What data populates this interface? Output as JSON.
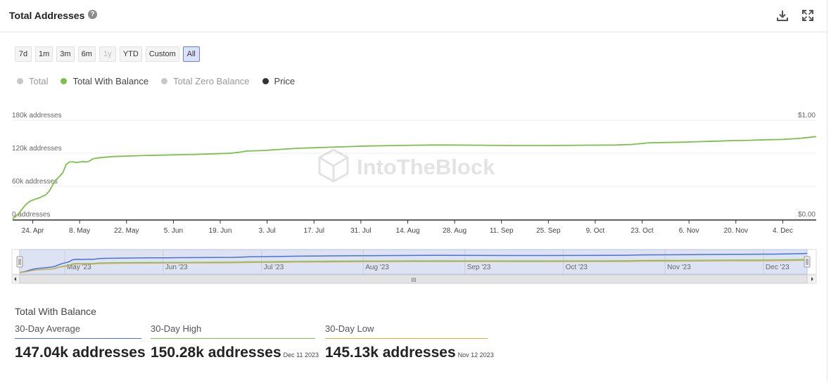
{
  "header": {
    "title": "Total Addresses",
    "help_glyph": "?"
  },
  "timeframes": [
    {
      "label": "7d",
      "state": "normal"
    },
    {
      "label": "1m",
      "state": "normal"
    },
    {
      "label": "3m",
      "state": "normal"
    },
    {
      "label": "6m",
      "state": "normal"
    },
    {
      "label": "1y",
      "state": "disabled"
    },
    {
      "label": "YTD",
      "state": "normal"
    },
    {
      "label": "Custom",
      "state": "normal"
    },
    {
      "label": "All",
      "state": "active"
    }
  ],
  "legend": [
    {
      "label": "Total",
      "color": "#c8c8c8",
      "text_color": "#999999"
    },
    {
      "label": "Total With Balance",
      "color": "#7cc04b",
      "text_color": "#444444"
    },
    {
      "label": "Total Zero Balance",
      "color": "#c8c8c8",
      "text_color": "#999999"
    },
    {
      "label": "Price",
      "color": "#333333",
      "text_color": "#444444"
    }
  ],
  "watermark": "IntoTheBlock",
  "chart_data": {
    "type": "line",
    "title": "Total Addresses",
    "xlabel": "",
    "ylabel": "addresses",
    "ylim": [
      0,
      180000
    ],
    "y2lim": [
      0,
      1
    ],
    "y_ticks": [
      "0 addresses",
      "60k addresses",
      "120k addresses",
      "180k addresses"
    ],
    "y_tick_values": [
      0,
      60000,
      120000,
      180000
    ],
    "y2_ticks": [
      "$0.00",
      "$1.00"
    ],
    "y2_tick_values": [
      0,
      1
    ],
    "x_day_range": [
      0,
      240
    ],
    "x_ticks": [
      {
        "label": "24. Apr",
        "day": 6
      },
      {
        "label": "8. May",
        "day": 20
      },
      {
        "label": "22. May",
        "day": 34
      },
      {
        "label": "5. Jun",
        "day": 48
      },
      {
        "label": "19. Jun",
        "day": 62
      },
      {
        "label": "3. Jul",
        "day": 76
      },
      {
        "label": "17. Jul",
        "day": 90
      },
      {
        "label": "31. Jul",
        "day": 104
      },
      {
        "label": "14. Aug",
        "day": 118
      },
      {
        "label": "28. Aug",
        "day": 132
      },
      {
        "label": "11. Sep",
        "day": 146
      },
      {
        "label": "25. Sep",
        "day": 160
      },
      {
        "label": "9. Oct",
        "day": 174
      },
      {
        "label": "23. Oct",
        "day": 188
      },
      {
        "label": "6. Nov",
        "day": 202
      },
      {
        "label": "20. Nov",
        "day": 216
      },
      {
        "label": "4. Dec",
        "day": 230
      }
    ],
    "series": [
      {
        "name": "Total With Balance",
        "color": "#7cc04b",
        "points": [
          [
            0,
            1000
          ],
          [
            1,
            6000
          ],
          [
            2,
            12000
          ],
          [
            3,
            20000
          ],
          [
            4,
            27000
          ],
          [
            5,
            32000
          ],
          [
            6,
            35000
          ],
          [
            7,
            37000
          ],
          [
            8,
            39000
          ],
          [
            9,
            42000
          ],
          [
            10,
            45000
          ],
          [
            11,
            52000
          ],
          [
            12,
            63000
          ],
          [
            13,
            72000
          ],
          [
            14,
            78000
          ],
          [
            15,
            85000
          ],
          [
            16,
            100000
          ],
          [
            17,
            104000
          ],
          [
            18,
            104500
          ],
          [
            19,
            103000
          ],
          [
            20,
            104000
          ],
          [
            21,
            105000
          ],
          [
            22,
            104000
          ],
          [
            23,
            106000
          ],
          [
            24,
            110000
          ],
          [
            26,
            112000
          ],
          [
            30,
            114000
          ],
          [
            35,
            115000
          ],
          [
            40,
            116000
          ],
          [
            45,
            116500
          ],
          [
            50,
            117500
          ],
          [
            55,
            118000
          ],
          [
            60,
            119000
          ],
          [
            65,
            120000
          ],
          [
            68,
            122000
          ],
          [
            70,
            124000
          ],
          [
            75,
            125000
          ],
          [
            80,
            127000
          ],
          [
            85,
            129000
          ],
          [
            90,
            130000
          ],
          [
            95,
            131000
          ],
          [
            100,
            132000
          ],
          [
            105,
            133000
          ],
          [
            110,
            133500
          ],
          [
            115,
            134000
          ],
          [
            120,
            134500
          ],
          [
            125,
            135000
          ],
          [
            130,
            135000
          ],
          [
            140,
            134500
          ],
          [
            150,
            134000
          ],
          [
            160,
            134000
          ],
          [
            170,
            134500
          ],
          [
            180,
            135000
          ],
          [
            185,
            136000
          ],
          [
            190,
            139000
          ],
          [
            195,
            139500
          ],
          [
            200,
            140000
          ],
          [
            205,
            141000
          ],
          [
            210,
            142000
          ],
          [
            215,
            143000
          ],
          [
            220,
            143500
          ],
          [
            225,
            144500
          ],
          [
            230,
            145000
          ],
          [
            235,
            147000
          ],
          [
            240,
            150280
          ]
        ]
      }
    ],
    "navigator": {
      "x_labels": [
        "May '23",
        "Jun '23",
        "Jul '23",
        "Aug '23",
        "Sep '23",
        "Oct '23",
        "Nov '23",
        "Dec '23"
      ],
      "x_label_days": [
        15,
        45,
        75,
        106,
        137,
        167,
        198,
        228
      ],
      "grip_glyph": "III",
      "series_colors": [
        "#4a72d9",
        "#7cc04b",
        "#d4aa5c"
      ]
    }
  },
  "stats": {
    "title": "Total With Balance",
    "items": [
      {
        "label": "30-Day Average",
        "value": "147.04k addresses",
        "date": "",
        "color": "#4a72d9"
      },
      {
        "label": "30-Day High",
        "value": "150.28k addresses",
        "date": "Dec 11 2023",
        "color": "#7cc04b"
      },
      {
        "label": "30-Day Low",
        "value": "145.13k addresses",
        "date": "Nov 12 2023",
        "color": "#e0a93a"
      }
    ]
  }
}
